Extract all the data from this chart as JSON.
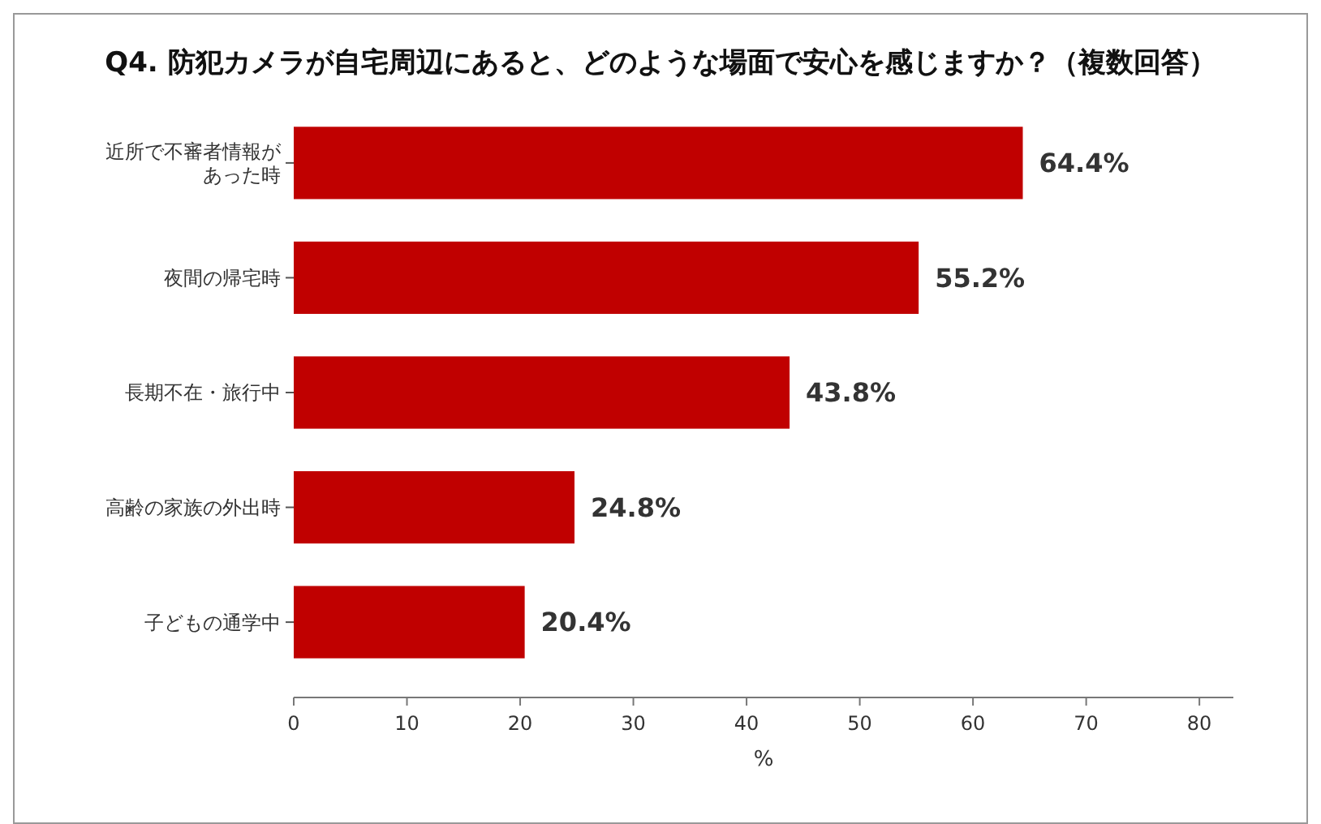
{
  "chart_data": {
    "type": "bar",
    "orientation": "horizontal",
    "title": "Q4. 防犯カメラが自宅周辺にあると、どのような場面で安心を感じますか？（複数回答）",
    "categories": [
      "近所で不審者情報があった時",
      "夜間の帰宅時",
      "長期不在・旅行中",
      "高齢の家族の外出時",
      "子どもの通学中"
    ],
    "values": [
      64.4,
      55.2,
      43.8,
      24.8,
      20.4
    ],
    "value_labels": [
      "64.4%",
      "55.2%",
      "43.8%",
      "24.8%",
      "20.4%"
    ],
    "color": "#c00000",
    "xlabel": "%",
    "xlim": [
      0,
      83
    ],
    "xticks": [
      0,
      10,
      20,
      30,
      40,
      50,
      60,
      70,
      80
    ]
  }
}
